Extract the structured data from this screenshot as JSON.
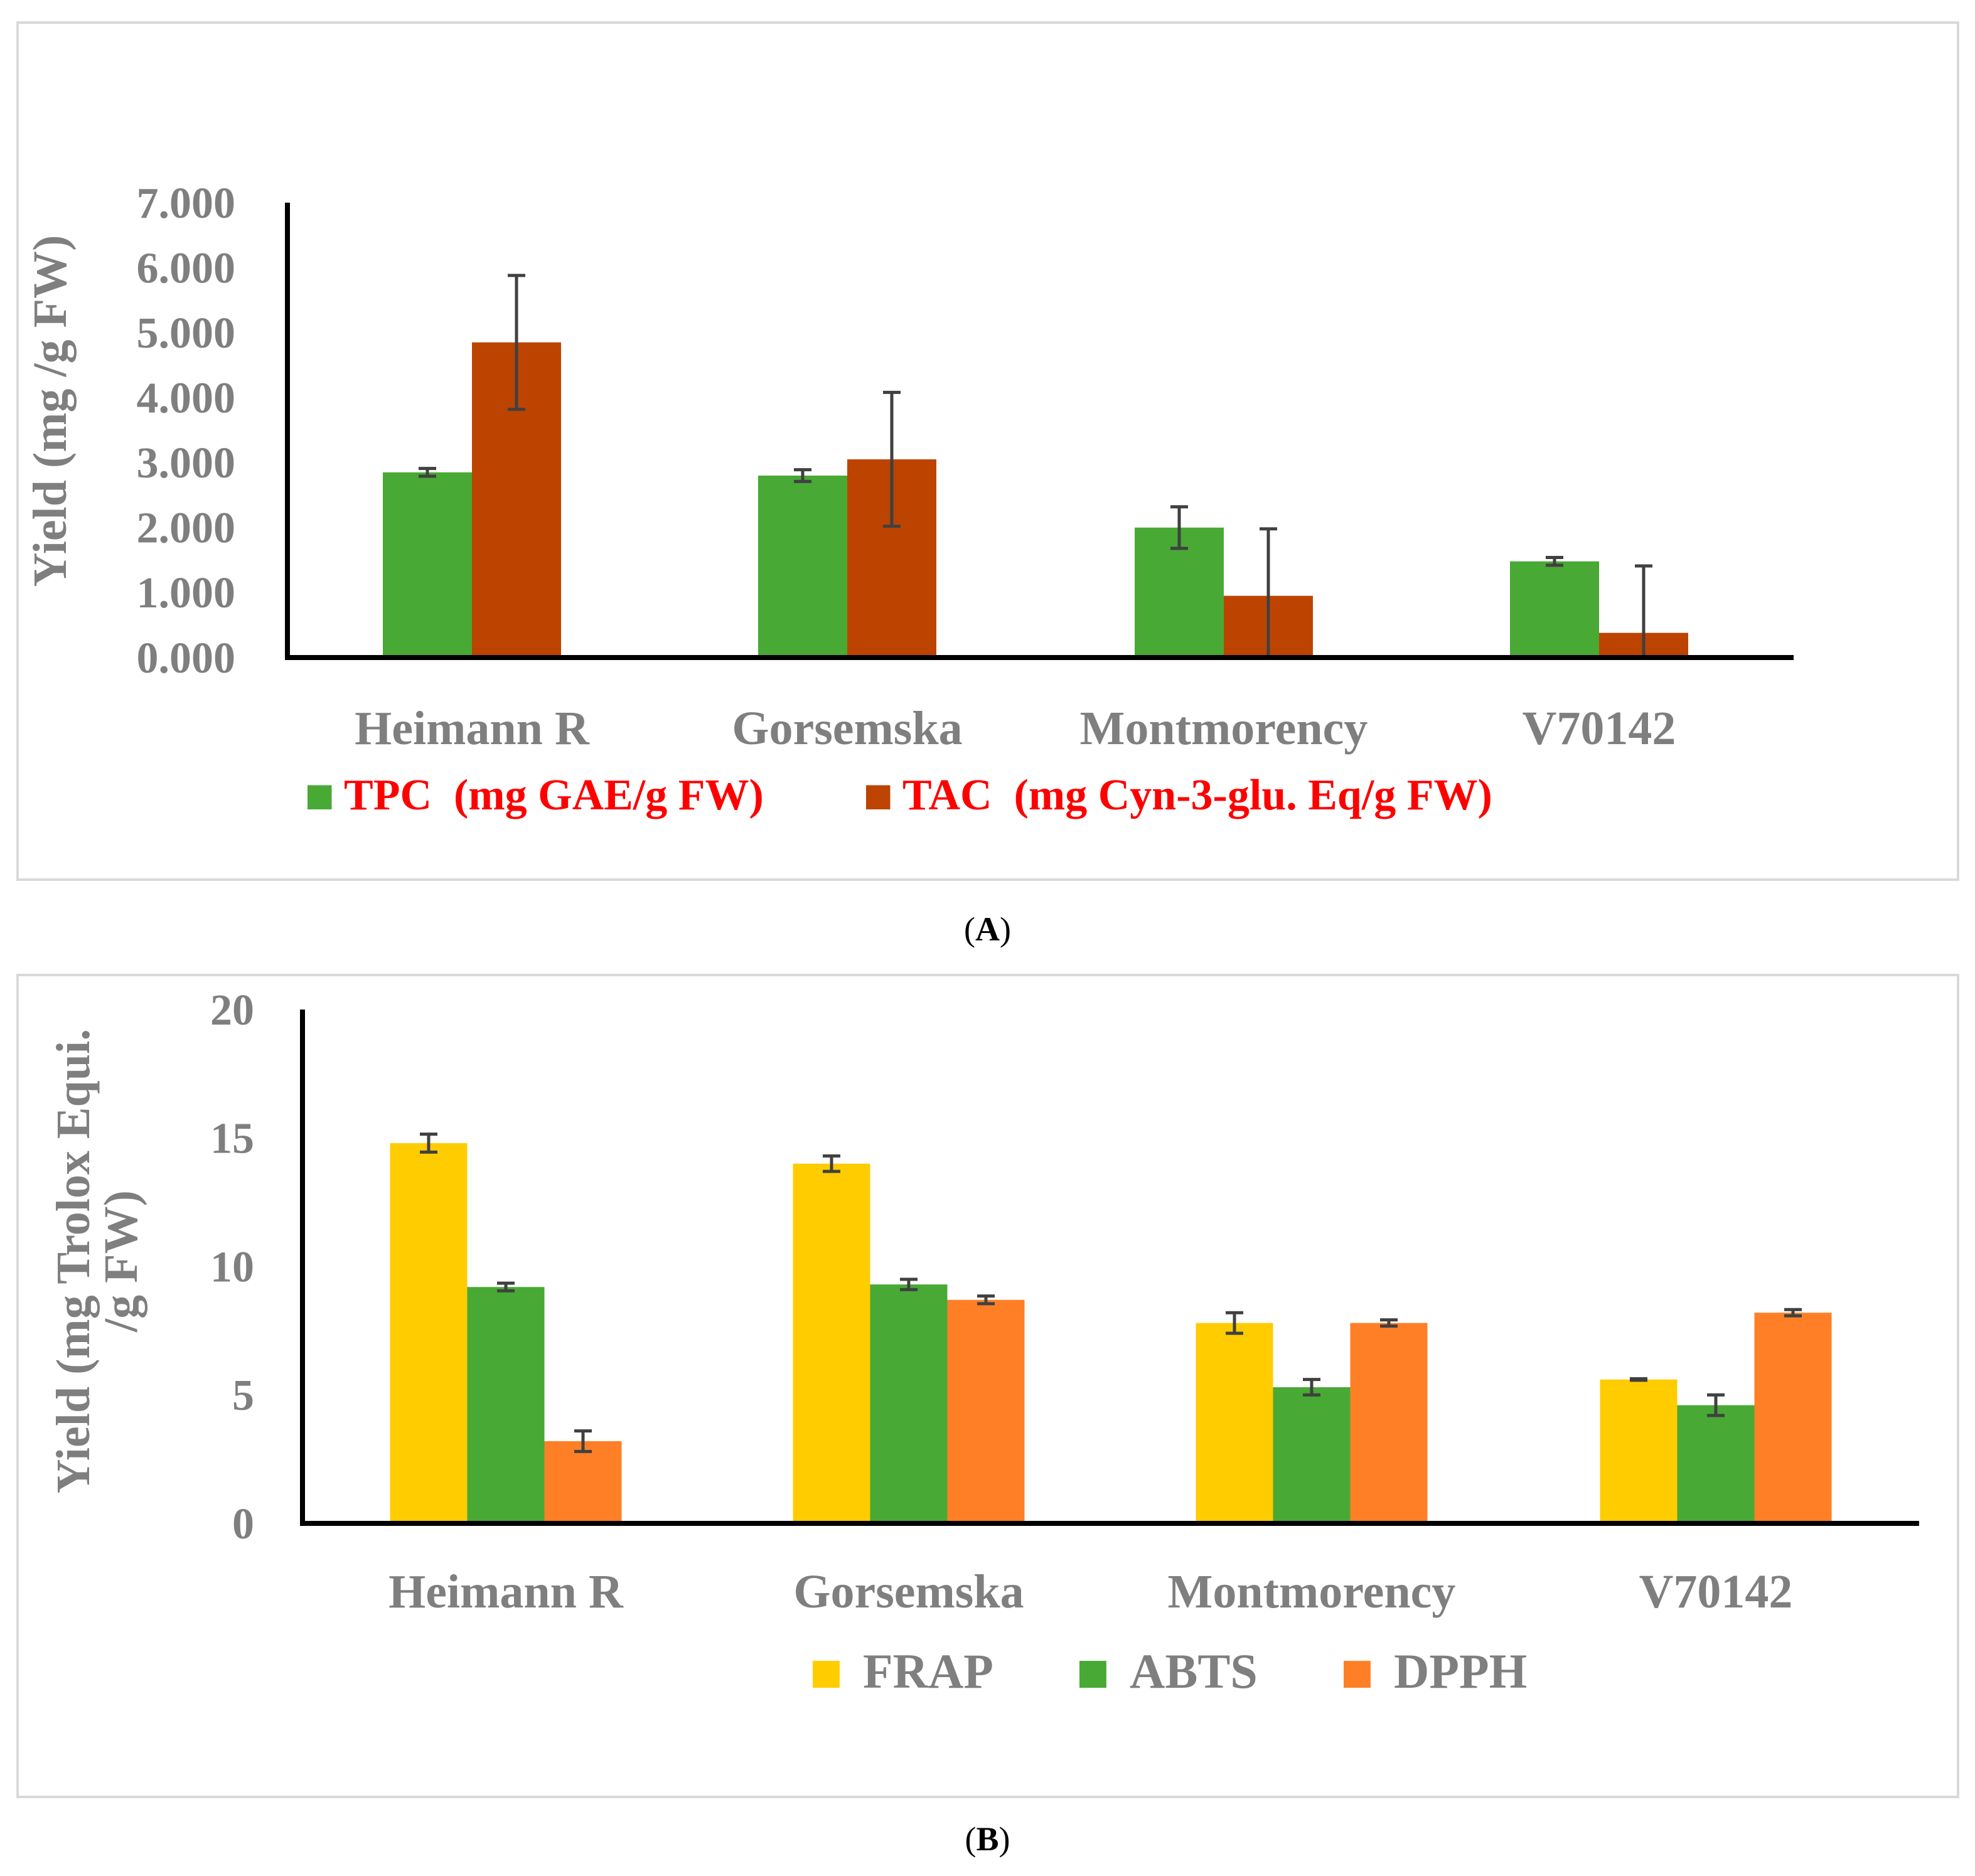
{
  "colors": {
    "tpc": "#48a935",
    "tac": "#bc4400",
    "frap": "#ffcc00",
    "abts": "#48a935",
    "dpph": "#ff7f27",
    "axis_text": "#7f7f7f",
    "legend_text_a": "#ff0000",
    "legend_text_b": "#7f7f7f",
    "error_bar": "#404040"
  },
  "captions": {
    "a": "A",
    "b": "B"
  },
  "chart_data": [
    {
      "id": "A",
      "type": "bar",
      "categories": [
        "Heimann R",
        "Gorsemska",
        "Montmorency",
        "V70142"
      ],
      "series": [
        {
          "name": "TPC  (mg GAE/g FW)",
          "values": [
            2.85,
            2.8,
            2.0,
            1.48
          ],
          "errors": [
            0.06,
            0.09,
            0.32,
            0.06
          ]
        },
        {
          "name": "TAC  (mg Cyn-3-glu. Eq/g FW)",
          "values": [
            4.85,
            3.05,
            0.95,
            0.38
          ],
          "errors": [
            1.03,
            1.03,
            1.03,
            1.03
          ]
        }
      ],
      "ylabel": "Yield (mg /g FW)",
      "ylim": [
        0,
        7
      ],
      "yticks": [
        "0.000",
        "1.000",
        "2.000",
        "3.000",
        "4.000",
        "5.000",
        "6.000",
        "7.000"
      ],
      "legend": "bottom"
    },
    {
      "id": "B",
      "type": "bar",
      "categories": [
        "Heimann R",
        "Gorsemska",
        "Montmorency",
        "V70142"
      ],
      "series": [
        {
          "name": "FRAP",
          "values": [
            14.8,
            14.0,
            7.8,
            5.6
          ],
          "errors": [
            0.35,
            0.3,
            0.4,
            0.03
          ]
        },
        {
          "name": "ABTS",
          "values": [
            9.2,
            9.3,
            5.3,
            4.6
          ],
          "errors": [
            0.15,
            0.2,
            0.3,
            0.4
          ]
        },
        {
          "name": "DPPH",
          "values": [
            3.2,
            8.7,
            7.8,
            8.2
          ],
          "errors": [
            0.4,
            0.15,
            0.12,
            0.12
          ]
        }
      ],
      "ylabel": "Yield (mg Trolox Equi. /g FW)",
      "ylabel_lines": [
        "Yield (mg Trolox Equi.",
        "/g FW)"
      ],
      "ylim": [
        0,
        20
      ],
      "yticks": [
        "0",
        "5",
        "10",
        "15",
        "20"
      ],
      "legend": "bottom"
    }
  ]
}
